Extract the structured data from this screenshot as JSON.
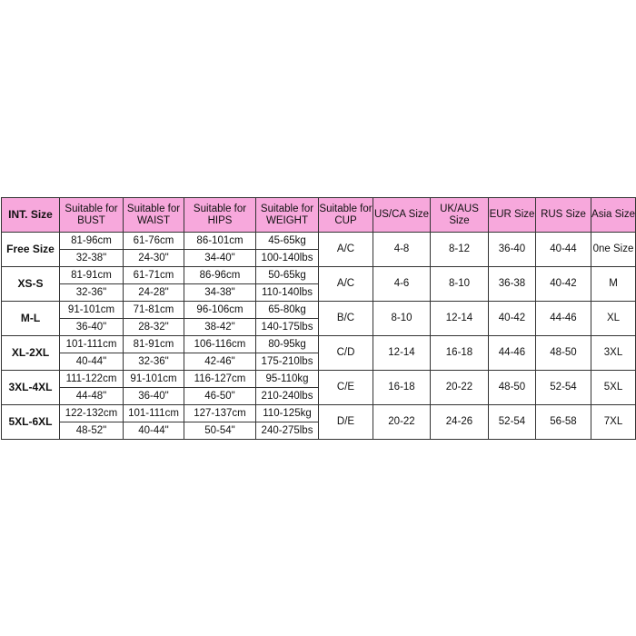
{
  "headers": [
    "INT. Size",
    "Suitable for BUST",
    "Suitable for WAIST",
    "Suitable for HIPS",
    "Suitable for WEIGHT",
    "Suitable for CUP",
    "US/CA Size",
    "UK/AUS Size",
    "EUR Size",
    "RUS Size",
    "Asia Size"
  ],
  "header_color": "#f7a8dc",
  "rows": [
    {
      "size": "Free Size",
      "bust": [
        "81-96cm",
        "32-38\""
      ],
      "waist": [
        "61-76cm",
        "24-30\""
      ],
      "hips": [
        "86-101cm",
        "34-40\""
      ],
      "weight": [
        "45-65kg",
        "100-140lbs"
      ],
      "cup": "A/C",
      "us": "4-8",
      "uk": "8-12",
      "eur": "36-40",
      "rus": "40-44",
      "asia": "0ne Size"
    },
    {
      "size": "XS-S",
      "bust": [
        "81-91cm",
        "32-36\""
      ],
      "waist": [
        "61-71cm",
        "24-28\""
      ],
      "hips": [
        "86-96cm",
        "34-38\""
      ],
      "weight": [
        "50-65kg",
        "110-140lbs"
      ],
      "cup": "A/C",
      "us": "4-6",
      "uk": "8-10",
      "eur": "36-38",
      "rus": "40-42",
      "asia": "M"
    },
    {
      "size": "M-L",
      "bust": [
        "91-101cm",
        "36-40\""
      ],
      "waist": [
        "71-81cm",
        "28-32\""
      ],
      "hips": [
        "96-106cm",
        "38-42\""
      ],
      "weight": [
        "65-80kg",
        "140-175lbs"
      ],
      "cup": "B/C",
      "us": "8-10",
      "uk": "12-14",
      "eur": "40-42",
      "rus": "44-46",
      "asia": "XL"
    },
    {
      "size": "XL-2XL",
      "bust": [
        "101-111cm",
        "40-44\""
      ],
      "waist": [
        "81-91cm",
        "32-36\""
      ],
      "hips": [
        "106-116cm",
        "42-46\""
      ],
      "weight": [
        "80-95kg",
        "175-210lbs"
      ],
      "cup": "C/D",
      "us": "12-14",
      "uk": "16-18",
      "eur": "44-46",
      "rus": "48-50",
      "asia": "3XL"
    },
    {
      "size": "3XL-4XL",
      "bust": [
        "111-122cm",
        "44-48\""
      ],
      "waist": [
        "91-101cm",
        "36-40\""
      ],
      "hips": [
        "116-127cm",
        "46-50\""
      ],
      "weight": [
        "95-110kg",
        "210-240lbs"
      ],
      "cup": "C/E",
      "us": "16-18",
      "uk": "20-22",
      "eur": "48-50",
      "rus": "52-54",
      "asia": "5XL"
    },
    {
      "size": "5XL-6XL",
      "bust": [
        "122-132cm",
        "48-52\""
      ],
      "waist": [
        "101-111cm",
        "40-44\""
      ],
      "hips": [
        "127-137cm",
        "50-54\""
      ],
      "weight": [
        "110-125kg",
        "240-275lbs"
      ],
      "cup": "D/E",
      "us": "20-22",
      "uk": "24-26",
      "eur": "52-54",
      "rus": "56-58",
      "asia": "7XL"
    }
  ]
}
